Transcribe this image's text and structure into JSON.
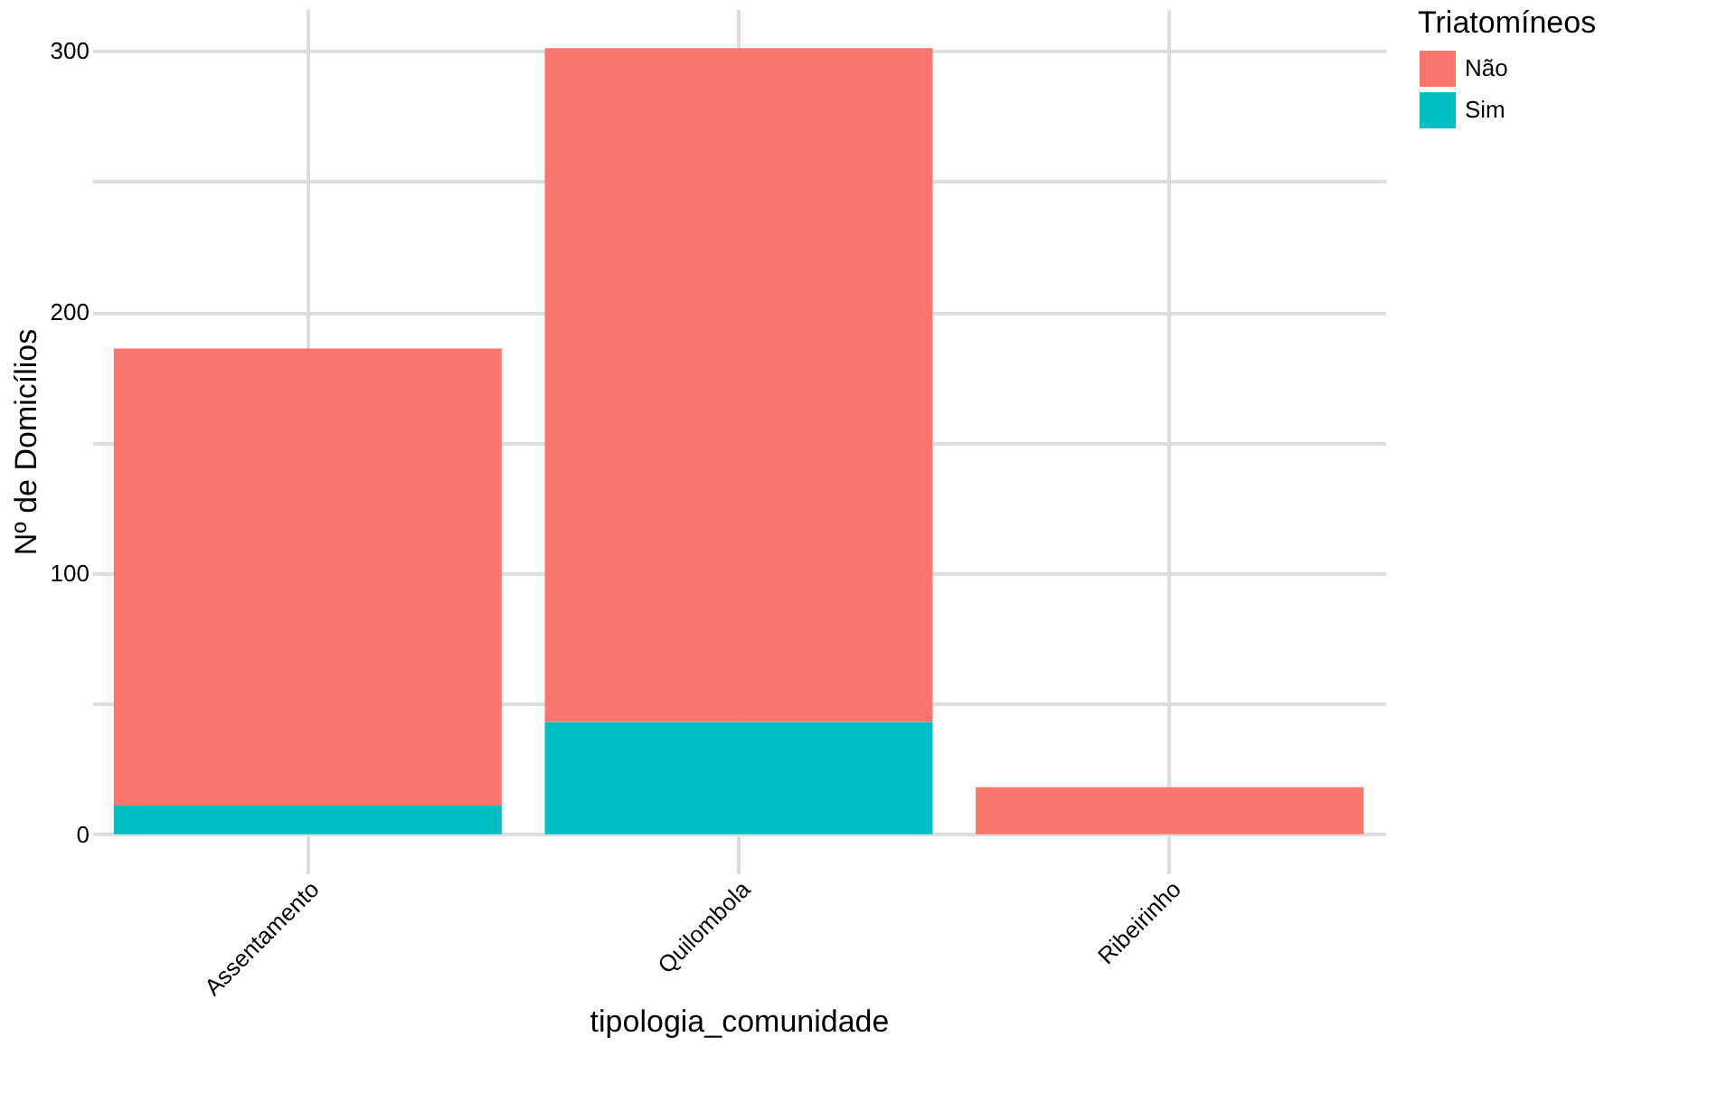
{
  "chart_data": {
    "type": "bar",
    "stacked": true,
    "xlabel": "tipologia_comunidade",
    "ylabel": "Nº de Domicílios",
    "legend_title": "Triatomíneos",
    "legend": "right",
    "grid": true,
    "categories": [
      "Assentamento",
      "Quilombola",
      "Ribeirinho"
    ],
    "series": [
      {
        "name": "Sim",
        "color": "#00bfc4",
        "values": [
          11,
          43,
          0
        ]
      },
      {
        "name": "Não",
        "color": "#f8766d",
        "values": [
          175,
          258,
          18
        ]
      }
    ],
    "ylim": [
      -15,
      316
    ],
    "yticks": [
      0,
      {
        "value": 50,
        "label": null
      },
      100,
      {
        "value": 150,
        "label": null
      },
      200,
      {
        "value": 250,
        "label": null
      },
      300
    ]
  }
}
